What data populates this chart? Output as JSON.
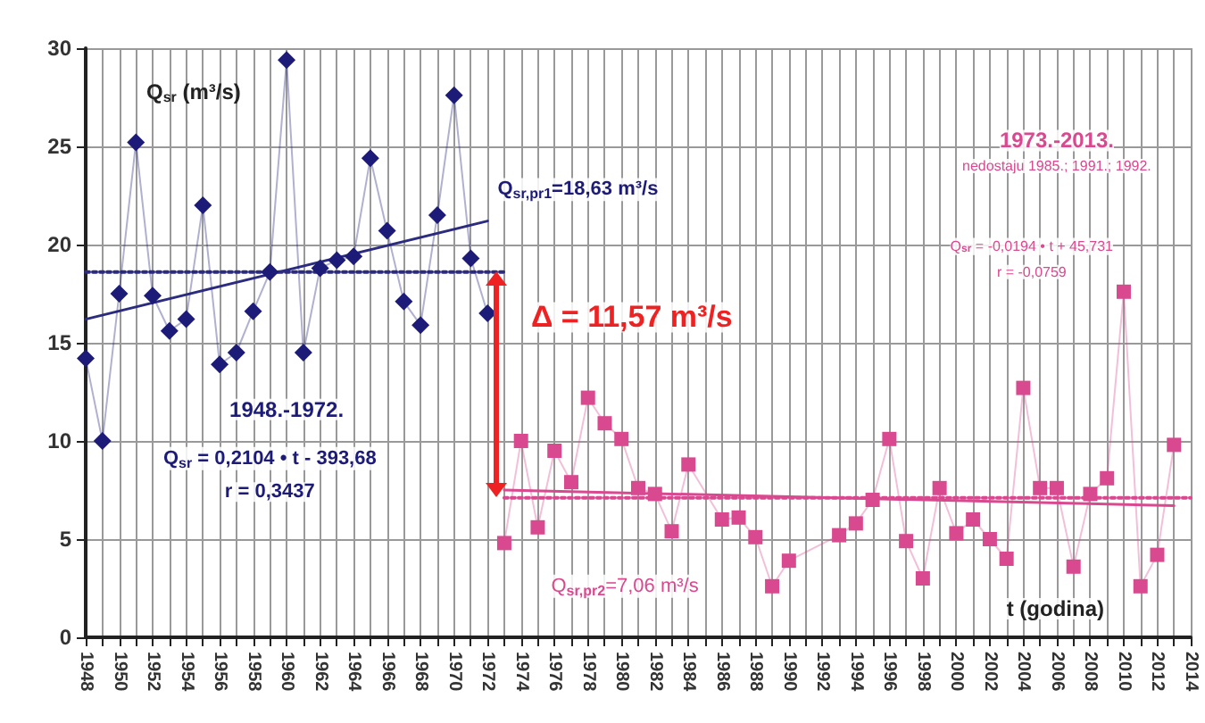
{
  "chart_data": {
    "type": "line",
    "xlabel": "t (godina)",
    "ylabel": "Q$_{sr}$ (m³/s)",
    "xlim": [
      1948,
      2014
    ],
    "ylim": [
      0,
      30
    ],
    "xticks": [
      1948,
      {
        "value": 1949,
        "label": null
      },
      1950,
      {
        "value": 1951,
        "label": null
      },
      1952,
      {
        "value": 1953,
        "label": null
      },
      1954,
      {
        "value": 1955,
        "label": null
      },
      1956,
      {
        "value": 1957,
        "label": null
      },
      1958,
      {
        "value": 1959,
        "label": null
      },
      1960,
      {
        "value": 1961,
        "label": null
      },
      1962,
      {
        "value": 1963,
        "label": null
      },
      1964,
      {
        "value": 1965,
        "label": null
      },
      1966,
      {
        "value": 1967,
        "label": null
      },
      1968,
      {
        "value": 1969,
        "label": null
      },
      1970,
      {
        "value": 1971,
        "label": null
      },
      1972,
      {
        "value": 1973,
        "label": null
      },
      1974,
      {
        "value": 1975,
        "label": null
      },
      1976,
      {
        "value": 1977,
        "label": null
      },
      1978,
      {
        "value": 1979,
        "label": null
      },
      1980,
      {
        "value": 1981,
        "label": null
      },
      1982,
      {
        "value": 1983,
        "label": null
      },
      1984,
      {
        "value": 1985,
        "label": null
      },
      1986,
      {
        "value": 1987,
        "label": null
      },
      1988,
      {
        "value": 1989,
        "label": null
      },
      1990,
      {
        "value": 1991,
        "label": null
      },
      1992,
      {
        "value": 1993,
        "label": null
      },
      1994,
      {
        "value": 1995,
        "label": null
      },
      1996,
      {
        "value": 1997,
        "label": null
      },
      1998,
      {
        "value": 1999,
        "label": null
      },
      2000,
      {
        "value": 2001,
        "label": null
      },
      2002,
      {
        "value": 2003,
        "label": null
      },
      2004,
      {
        "value": 2005,
        "label": null
      },
      2006,
      {
        "value": 2007,
        "label": null
      },
      2008,
      {
        "value": 2009,
        "label": null
      },
      2010,
      {
        "value": 2011,
        "label": null
      },
      2012,
      {
        "value": 2013,
        "label": null
      },
      2014
    ],
    "yticks": [
      0,
      5,
      10,
      15,
      20,
      25,
      30
    ],
    "grid": true,
    "series": [
      {
        "color": "#1c1c78",
        "marker": "diamond",
        "x": [
          1948,
          1949,
          1950,
          1951,
          1952,
          1953,
          1954,
          1955,
          1956,
          1957,
          1958,
          1959,
          1960,
          1961,
          1962,
          1963,
          1964,
          1965,
          1966,
          1967,
          1968,
          1969,
          1970,
          1971,
          1972
        ],
        "values": [
          14.2,
          10,
          17.5,
          25.2,
          17.4,
          15.6,
          16.2,
          22,
          13.9,
          14.5,
          16.6,
          18.6,
          29.4,
          14.5,
          18.8,
          19.2,
          19.4,
          24.4,
          20.7,
          17.1,
          15.9,
          21.5,
          27.6,
          19.3,
          16.5
        ]
      },
      {
        "color": "#d9498f",
        "marker": "square",
        "x": [
          1973,
          1974,
          1975,
          1976,
          1977,
          1978,
          1979,
          1980,
          1981,
          1982,
          1983,
          1984,
          1986,
          1987,
          1988,
          1989,
          1990,
          1993,
          1994,
          1995,
          1996,
          1997,
          1998,
          1999,
          2000,
          2001,
          2002,
          2003,
          2004,
          2005,
          2006,
          2007,
          2008,
          2009,
          2010,
          2011,
          2012,
          2013
        ],
        "values": [
          4.8,
          10,
          5.6,
          9.5,
          7.9,
          12.2,
          10.9,
          10.1,
          7.6,
          7.3,
          5.4,
          8.8,
          6,
          6.1,
          5.1,
          2.6,
          3.9,
          5.2,
          5.8,
          7,
          10.1,
          4.9,
          3,
          7.6,
          5.3,
          6,
          5,
          4,
          12.7,
          7.6,
          7.6,
          3.6,
          7.3,
          8.1,
          17.6,
          2.6,
          4.2,
          9.8
        ]
      },
      {
        "color": "#2b2b80",
        "marker": "none",
        "line_style": "dotted",
        "x": [
          1948,
          1973
        ],
        "values": [
          18.6,
          18.6
        ]
      },
      {
        "color": "#d9498f",
        "marker": "none",
        "line_style": "dotted",
        "x": [
          1973,
          2014
        ],
        "values": [
          7.1,
          7.1
        ]
      },
      {
        "color": "#2b2b80",
        "marker": "none",
        "line_style": "solid",
        "x": [
          1948,
          1972
        ],
        "values": [
          16.2,
          21.2
        ]
      },
      {
        "color": "#d9498f",
        "marker": "none",
        "line_style": "solid",
        "x": [
          1973,
          2013
        ],
        "values": [
          7.5,
          6.7
        ]
      }
    ],
    "annotations": [
      "1948.-1972.",
      "Q$_{sr}$ = 0,2104 • t - 393,68",
      "r = 0,3437",
      "Q$_{sr,pr1}$=18,63 m³/s",
      "Δ = 11,57 m³/s",
      "1973.-2013.",
      "nedostaju 1985.; 1991.; 1992.",
      "Q$_{sr}$ = -0,0194 • t + 45,731",
      "r = -0,0759",
      "Q$_{sr,pr2}$=7,06 m³/s"
    ]
  }
}
